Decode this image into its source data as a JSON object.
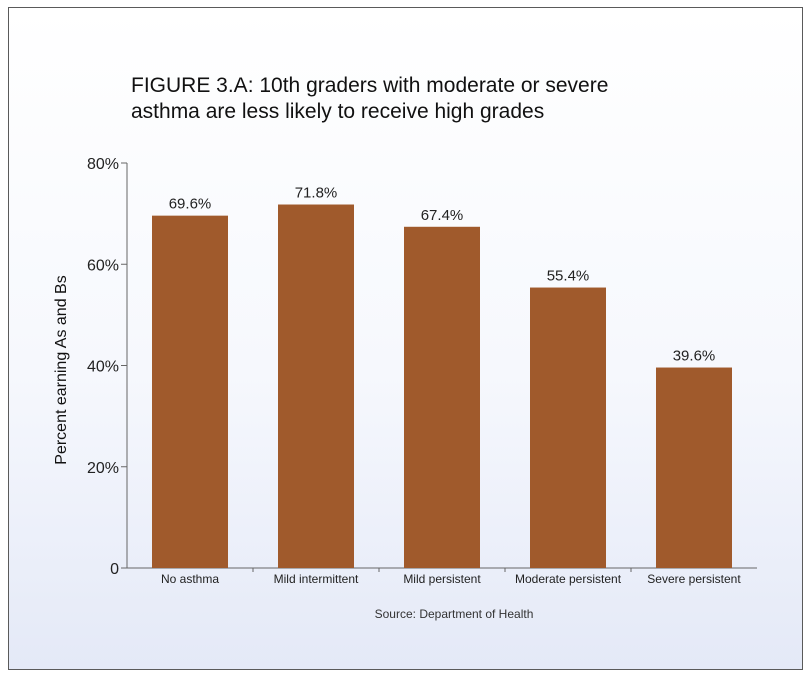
{
  "chart_data": {
    "type": "bar",
    "title": "FIGURE 3.A: 10th graders with moderate or severe\nasthma are less likely to receive high grades",
    "xlabel": "",
    "ylabel": "Percent earning As and Bs",
    "categories": [
      "No asthma",
      "Mild intermittent",
      "Mild persistent",
      "Moderate persistent",
      "Severe persistent"
    ],
    "values": [
      69.6,
      71.8,
      67.4,
      55.4,
      39.6
    ],
    "value_labels": [
      "69.6%",
      "71.8%",
      "67.4%",
      "55.4%",
      "39.6%"
    ],
    "ylim": [
      0,
      80
    ],
    "yticks": [
      0,
      20,
      40,
      60,
      80
    ],
    "ytick_labels": [
      "0",
      "20%",
      "40%",
      "60%",
      "80%"
    ],
    "grid": false,
    "legend": "none",
    "bar_color": "#a05a2c",
    "source": "Source: Department of Health"
  }
}
